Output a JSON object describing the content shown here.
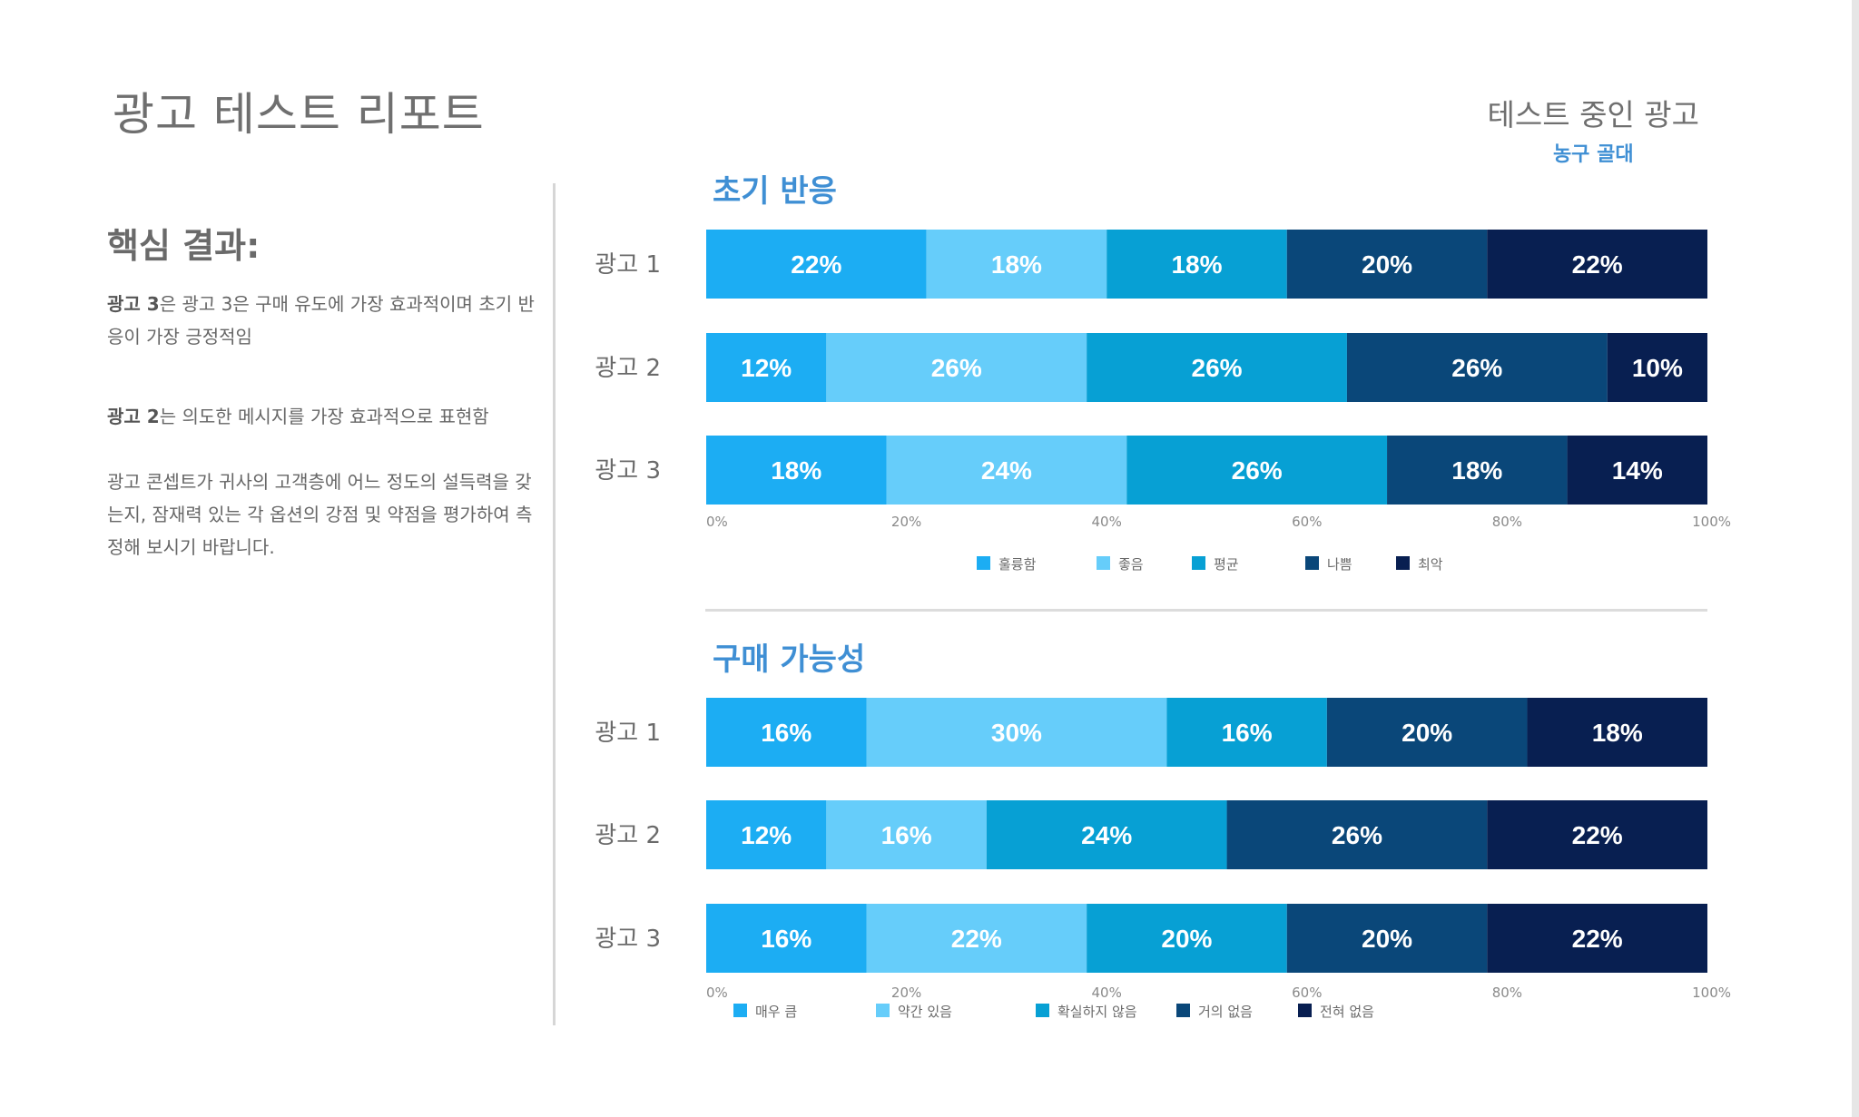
{
  "page": {
    "title": "광고 테스트 리포트",
    "ad_under_test_label": "테스트 중인 광고",
    "ad_under_test_value": "농구 골대"
  },
  "key_findings": {
    "heading": "핵심 결과:",
    "finding_1_bold": "광고 3",
    "finding_1_text": "은 광고 3은 구매 유도에 가장 효과적이며 초기 반응이 가장 긍정적임",
    "finding_2_bold": "광고 2",
    "finding_2_text": "는 의도한 메시지를 가장 효과적으로 표현함",
    "finding_3_text": "광고 콘셉트가 귀사의 고객층에 어느 정도의 설득력을 갖는지, 잠재력 있는 각 옵션의 강점 및 약점을 평가하여 측정해 보시기 바랍니다."
  },
  "colors": {
    "c1": "#1cadf3",
    "c2": "#66cdfa",
    "c3": "#07a0d4",
    "c4": "#0a4779",
    "c5": "#081f51"
  },
  "chart_data": [
    {
      "type": "bar",
      "stacked": true,
      "orientation": "horizontal",
      "title": "초기 반응",
      "categories": [
        "광고 1",
        "광고 2",
        "광고 3"
      ],
      "series": [
        {
          "name": "훌륭함",
          "values": [
            22,
            12,
            18
          ],
          "color": "#1cadf3"
        },
        {
          "name": "좋음",
          "values": [
            18,
            26,
            24
          ],
          "color": "#66cdfa"
        },
        {
          "name": "평균",
          "values": [
            18,
            26,
            26
          ],
          "color": "#07a0d4"
        },
        {
          "name": "나쁨",
          "values": [
            20,
            26,
            18
          ],
          "color": "#0a4779"
        },
        {
          "name": "최악",
          "values": [
            22,
            10,
            14
          ],
          "color": "#081f51"
        }
      ],
      "value_labels": [
        [
          "22%",
          "18%",
          "18%",
          "20%",
          "22%"
        ],
        [
          "12%",
          "26%",
          "26%",
          "26%",
          "10%"
        ],
        [
          "18%",
          "24%",
          "26%",
          "18%",
          "14%"
        ]
      ],
      "xlim": [
        0,
        100
      ],
      "xticks": [
        "0%",
        "20%",
        "40%",
        "60%",
        "80%",
        "100%"
      ],
      "legend_position": "bottom"
    },
    {
      "type": "bar",
      "stacked": true,
      "orientation": "horizontal",
      "title": "구매 가능성",
      "categories": [
        "광고 1",
        "광고 2",
        "광고 3"
      ],
      "series": [
        {
          "name": "매우 큼",
          "values": [
            16,
            12,
            16
          ],
          "color": "#1cadf3"
        },
        {
          "name": "약간 있음",
          "values": [
            30,
            16,
            22
          ],
          "color": "#66cdfa"
        },
        {
          "name": "확실하지 않음",
          "values": [
            16,
            24,
            20
          ],
          "color": "#07a0d4"
        },
        {
          "name": "거의 없음",
          "values": [
            20,
            26,
            20
          ],
          "color": "#0a4779"
        },
        {
          "name": "전혀 없음",
          "values": [
            18,
            22,
            22
          ],
          "color": "#081f51"
        }
      ],
      "value_labels": [
        [
          "16%",
          "30%",
          "16%",
          "20%",
          "18%"
        ],
        [
          "12%",
          "16%",
          "24%",
          "26%",
          "22%"
        ],
        [
          "16%",
          "22%",
          "20%",
          "20%",
          "22%"
        ]
      ],
      "xlim": [
        0,
        100
      ],
      "xticks": [
        "0%",
        "20%",
        "40%",
        "60%",
        "80%",
        "100%"
      ],
      "legend_position": "bottom"
    }
  ]
}
